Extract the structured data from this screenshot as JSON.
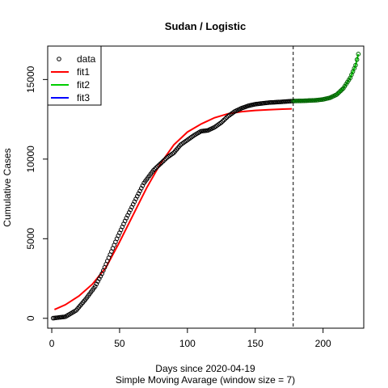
{
  "chart_data": {
    "type": "scatter",
    "title": "Sudan / Logistic",
    "xlabel": "Days since 2020-04-19",
    "subtitle": "Simple Moving Avarage (window size = 7)",
    "ylabel": "Cumulative Cases",
    "xlim": [
      -3,
      230
    ],
    "ylim": [
      -620,
      17100
    ],
    "x_ticks": [
      0,
      50,
      100,
      150,
      200
    ],
    "y_ticks": [
      0,
      5000,
      10000,
      15000
    ],
    "vline_x": 178,
    "legend": {
      "position": "top-left",
      "entries": [
        {
          "label": "data",
          "style": "point",
          "color": "#000000"
        },
        {
          "label": "fit1",
          "style": "line",
          "color": "#ff0000"
        },
        {
          "label": "fit2",
          "style": "line",
          "color": "#00cd00"
        },
        {
          "label": "fit3",
          "style": "line",
          "color": "#0000ff"
        }
      ]
    },
    "data_points": [
      [
        1,
        10
      ],
      [
        10,
        100
      ],
      [
        18,
        500
      ],
      [
        25,
        1200
      ],
      [
        32,
        2000
      ],
      [
        37,
        2800
      ],
      [
        42,
        3800
      ],
      [
        48,
        5000
      ],
      [
        55,
        6300
      ],
      [
        62,
        7500
      ],
      [
        68,
        8500
      ],
      [
        75,
        9300
      ],
      [
        80,
        9700
      ],
      [
        85,
        10100
      ],
      [
        90,
        10400
      ],
      [
        95,
        10900
      ],
      [
        100,
        11200
      ],
      [
        105,
        11500
      ],
      [
        110,
        11750
      ],
      [
        115,
        11800
      ],
      [
        120,
        12000
      ],
      [
        125,
        12300
      ],
      [
        130,
        12700
      ],
      [
        135,
        13000
      ],
      [
        140,
        13200
      ],
      [
        145,
        13350
      ],
      [
        150,
        13450
      ],
      [
        160,
        13550
      ],
      [
        170,
        13600
      ],
      [
        178,
        13650
      ]
    ],
    "fit1": [
      [
        2,
        550
      ],
      [
        10,
        850
      ],
      [
        20,
        1400
      ],
      [
        30,
        2150
      ],
      [
        40,
        3200
      ],
      [
        50,
        4800
      ],
      [
        60,
        6500
      ],
      [
        70,
        8200
      ],
      [
        80,
        9700
      ],
      [
        90,
        10900
      ],
      [
        100,
        11700
      ],
      [
        110,
        12200
      ],
      [
        120,
        12600
      ],
      [
        130,
        12850
      ],
      [
        140,
        12980
      ],
      [
        150,
        13060
      ],
      [
        160,
        13100
      ],
      [
        170,
        13140
      ],
      [
        177,
        13160
      ]
    ],
    "fit2": [
      [
        178,
        13650
      ],
      [
        185,
        13660
      ],
      [
        195,
        13700
      ],
      [
        200,
        13750
      ],
      [
        205,
        13850
      ],
      [
        210,
        14050
      ],
      [
        215,
        14450
      ],
      [
        220,
        15100
      ],
      [
        224,
        15900
      ],
      [
        226,
        16600
      ]
    ]
  }
}
